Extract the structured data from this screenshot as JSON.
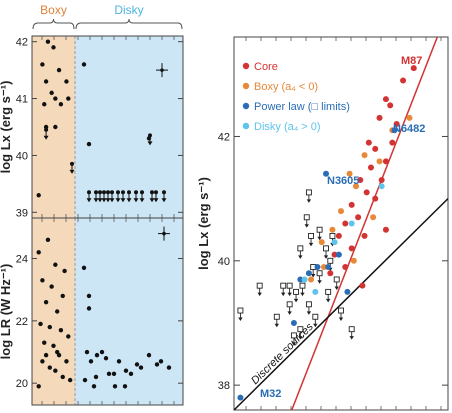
{
  "chart_data": [
    {
      "type": "scatter",
      "categories": [
        "Boxy",
        "Disky"
      ],
      "category_colors": {
        "Boxy": "#f5d9bb",
        "Disky": "#cde6f5"
      },
      "category_label_colors": {
        "Boxy": "#e0813a",
        "Disky": "#4fb3e0"
      },
      "panels": [
        {
          "ylabel": "log Lx (erg s⁻¹)",
          "ylim": [
            38.9,
            42.1
          ],
          "yticks": [
            39,
            40,
            41,
            42
          ],
          "boxy_points": [
            [
              0.2,
              41.6
            ],
            [
              0.35,
              42.0
            ],
            [
              0.5,
              41.9
            ],
            [
              0.65,
              41.5
            ],
            [
              0.85,
              41.3
            ],
            [
              0.3,
              41.3
            ],
            [
              0.55,
              41.0
            ],
            [
              0.7,
              40.9
            ],
            [
              0.25,
              40.9
            ],
            [
              0.45,
              41.1
            ],
            [
              0.9,
              41.0
            ],
            [
              0.3,
              40.5
            ],
            [
              0.55,
              40.5
            ],
            [
              0.1,
              39.3
            ]
          ],
          "boxy_upper_limits": [
            [
              0.3,
              40.4
            ]
          ],
          "boxy_dividers": [
            [
              1.0,
              39.8
            ]
          ],
          "disky_points": [
            [
              0.05,
              41.6
            ],
            [
              0.1,
              40.2
            ],
            [
              0.7,
              40.3
            ]
          ],
          "disky_upper_limits": [
            [
              0.1,
              39.3
            ],
            [
              0.17,
              39.3
            ],
            [
              0.21,
              39.3
            ],
            [
              0.25,
              39.3
            ],
            [
              0.29,
              39.3
            ],
            [
              0.33,
              39.3
            ],
            [
              0.39,
              39.3
            ],
            [
              0.44,
              39.3
            ],
            [
              0.5,
              39.3
            ],
            [
              0.57,
              39.3
            ],
            [
              0.63,
              39.3
            ],
            [
              0.73,
              39.3
            ],
            [
              0.77,
              39.3
            ],
            [
              0.85,
              39.3
            ],
            [
              0.71,
              40.3
            ]
          ],
          "error_cross": [
            0.83,
            41.5
          ]
        },
        {
          "ylabel": "log LR (W Hz⁻¹)",
          "ylim": [
            19.3,
            25.3
          ],
          "yticks": [
            20,
            22,
            24
          ],
          "boxy_points": [
            [
              0.1,
              24.2
            ],
            [
              0.35,
              24.6
            ],
            [
              0.55,
              23.8
            ],
            [
              0.8,
              23.6
            ],
            [
              0.2,
              23.3
            ],
            [
              0.45,
              23.1
            ],
            [
              0.75,
              22.8
            ],
            [
              0.3,
              22.6
            ],
            [
              0.6,
              22.3
            ],
            [
              0.15,
              21.9
            ],
            [
              0.4,
              21.8
            ],
            [
              0.7,
              21.7
            ],
            [
              0.9,
              21.5
            ],
            [
              0.25,
              21.3
            ],
            [
              0.5,
              21.2
            ],
            [
              0.65,
              20.9
            ],
            [
              0.85,
              20.7
            ],
            [
              0.2,
              20.7
            ],
            [
              0.4,
              20.5
            ],
            [
              0.55,
              20.4
            ],
            [
              0.75,
              20.2
            ],
            [
              0.95,
              20.1
            ],
            [
              0.3,
              20.9
            ],
            [
              0.6,
              21.0
            ],
            [
              0.1,
              19.9
            ]
          ],
          "disky_points": [
            [
              0.05,
              23.7
            ],
            [
              0.1,
              22.4
            ],
            [
              0.1,
              22.8
            ],
            [
              0.08,
              21.0
            ],
            [
              0.12,
              20.7
            ],
            [
              0.18,
              20.9
            ],
            [
              0.23,
              21.0
            ],
            [
              0.27,
              20.8
            ],
            [
              0.35,
              20.3
            ],
            [
              0.4,
              20.7
            ],
            [
              0.47,
              20.4
            ],
            [
              0.58,
              20.6
            ],
            [
              0.62,
              20.5
            ],
            [
              0.7,
              20.9
            ],
            [
              0.78,
              20.6
            ],
            [
              0.82,
              20.7
            ],
            [
              0.9,
              20.5
            ],
            [
              0.17,
              20.2
            ],
            [
              0.3,
              20.3
            ],
            [
              0.52,
              20.3
            ],
            [
              0.06,
              20.1
            ],
            [
              0.36,
              19.9
            ],
            [
              0.46,
              19.9
            ],
            [
              0.15,
              19.9
            ]
          ],
          "error_cross": [
            0.85,
            24.8
          ]
        }
      ]
    },
    {
      "type": "scatter",
      "ylabel": "log Lx (erg s⁻¹)",
      "ylim": [
        37.6,
        43.6
      ],
      "yticks": [
        38,
        40,
        42
      ],
      "xlim": [
        0,
        1
      ],
      "legend": [
        {
          "label": "Core",
          "color": "#d33333"
        },
        {
          "label": "Boxy (a₄ < 0)",
          "color": "#e8893a"
        },
        {
          "label": "Power law (□ limits)",
          "color": "#2a6db5"
        },
        {
          "label": "Disky (a₄ > 0)",
          "color": "#5fc3ec"
        }
      ],
      "annotations": [
        {
          "text": "M87",
          "color": "#d33333"
        },
        {
          "text": "N6482",
          "color": "#2a6db5"
        },
        {
          "text": "N3605",
          "color": "#2a6db5"
        },
        {
          "text": "M32",
          "color": "#2a6db5"
        },
        {
          "text": "Discrete sources",
          "color": "#111"
        }
      ],
      "series": [
        {
          "name": "Core",
          "color": "#d33333",
          "points": [
            [
              0.84,
              43.1
            ],
            [
              0.79,
              42.9
            ],
            [
              0.71,
              42.6
            ],
            [
              0.73,
              42.5
            ],
            [
              0.76,
              42.2
            ],
            [
              0.68,
              42.3
            ],
            [
              0.63,
              41.9
            ],
            [
              0.66,
              41.8
            ],
            [
              0.74,
              41.9
            ],
            [
              0.71,
              41.6
            ],
            [
              0.64,
              41.5
            ],
            [
              0.59,
              41.3
            ],
            [
              0.69,
              41.3
            ],
            [
              0.62,
              41.1
            ],
            [
              0.55,
              40.9
            ],
            [
              0.66,
              41.0
            ],
            [
              0.52,
              40.6
            ],
            [
              0.58,
              40.7
            ],
            [
              0.61,
              40.4
            ],
            [
              0.49,
              40.4
            ],
            [
              0.55,
              40.2
            ],
            [
              0.47,
              40.1
            ],
            [
              0.71,
              40.5
            ],
            [
              0.52,
              39.9
            ],
            [
              0.45,
              39.8
            ],
            [
              0.6,
              39.6
            ]
          ]
        },
        {
          "name": "Boxy (a₄ < 0)",
          "color": "#e8893a",
          "points": [
            [
              0.82,
              42.3
            ],
            [
              0.74,
              42.1
            ],
            [
              0.68,
              41.6
            ],
            [
              0.61,
              41.7
            ],
            [
              0.54,
              41.4
            ],
            [
              0.57,
              41.2
            ],
            [
              0.5,
              40.8
            ],
            [
              0.65,
              40.7
            ],
            [
              0.46,
              40.5
            ],
            [
              0.41,
              40.3
            ],
            [
              0.56,
              40.0
            ],
            [
              0.42,
              39.9
            ],
            [
              0.36,
              39.7
            ]
          ]
        },
        {
          "name": "Power law",
          "color": "#2a6db5",
          "points": [
            [
              0.75,
              42.1
            ],
            [
              0.43,
              41.4
            ],
            [
              0.49,
              40.1
            ],
            [
              0.39,
              39.9
            ],
            [
              0.35,
              39.8
            ],
            [
              0.31,
              39.7
            ],
            [
              0.28,
              39.0
            ],
            [
              0.44,
              39.9
            ],
            [
              0.53,
              39.5
            ],
            [
              0.03,
              37.8
            ]
          ]
        },
        {
          "name": "Disky (a₄ > 0)",
          "color": "#5fc3ec",
          "points": [
            [
              0.69,
              41.2
            ],
            [
              0.55,
              40.6
            ],
            [
              0.47,
              40.3
            ],
            [
              0.33,
              39.7
            ],
            [
              0.38,
              39.5
            ]
          ]
        }
      ],
      "limits": [
        [
          0.35,
          41.1
        ],
        [
          0.34,
          40.7
        ],
        [
          0.36,
          40.4
        ],
        [
          0.31,
          40.2
        ],
        [
          0.4,
          40.5
        ],
        [
          0.43,
          40.2
        ],
        [
          0.45,
          40.0
        ],
        [
          0.26,
          39.6
        ],
        [
          0.29,
          39.5
        ],
        [
          0.32,
          39.6
        ],
        [
          0.35,
          39.3
        ],
        [
          0.38,
          39.1
        ],
        [
          0.26,
          39.3
        ],
        [
          0.28,
          38.8
        ],
        [
          0.31,
          38.9
        ],
        [
          0.12,
          39.6
        ],
        [
          0.2,
          39.1
        ],
        [
          0.23,
          39.6
        ],
        [
          0.37,
          39.9
        ],
        [
          0.4,
          39.8
        ],
        [
          0.55,
          38.9
        ],
        [
          0.5,
          39.2
        ],
        [
          0.44,
          39.5
        ],
        [
          0.48,
          39.7
        ],
        [
          0.03,
          39.2
        ],
        [
          0.46,
          40.4
        ]
      ],
      "lines": [
        {
          "name": "Core",
          "color": "#d33333",
          "from": [
            0.27,
            37.6
          ],
          "to": [
            0.95,
            43.6
          ]
        },
        {
          "name": "Discrete sources",
          "color": "#111",
          "from": [
            0.0,
            37.6
          ],
          "to": [
            1.0,
            41.0
          ]
        }
      ]
    }
  ]
}
